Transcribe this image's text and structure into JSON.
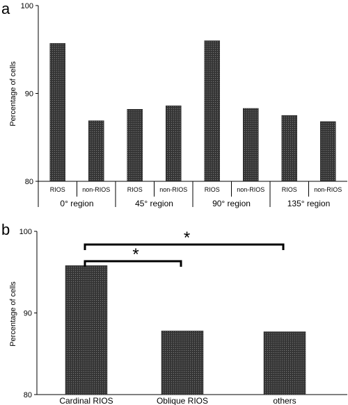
{
  "chart_data": [
    {
      "panel_label": "a",
      "type": "bar",
      "ylabel": "Percentage of cells",
      "ylim": [
        80,
        100
      ],
      "yticks": [
        80,
        90,
        100
      ],
      "categories": [
        "RIOS",
        "non-RIOS",
        "RIOS",
        "non-RIOS",
        "RIOS",
        "non-RIOS",
        "RIOS",
        "non-RIOS"
      ],
      "groups": [
        "0° region",
        "45° region",
        "90° region",
        "135° region"
      ],
      "values": [
        95.7,
        86.9,
        88.2,
        88.6,
        96.0,
        88.3,
        87.5,
        86.8
      ],
      "bar_color": "#3c3c3c",
      "grid": false
    },
    {
      "panel_label": "b",
      "type": "bar",
      "ylabel": "Percentage of cells",
      "ylim": [
        80,
        100
      ],
      "yticks": [
        80,
        90,
        100
      ],
      "categories": [
        "Cardinal RIOS",
        "Oblique RIOS",
        "others"
      ],
      "values": [
        95.8,
        87.8,
        87.7
      ],
      "bar_color": "#3c3c3c",
      "grid": false,
      "significance": [
        {
          "from": "Cardinal RIOS",
          "to": "Oblique RIOS",
          "marker": "*"
        },
        {
          "from": "Cardinal RIOS",
          "to": "others",
          "marker": "*"
        }
      ]
    }
  ]
}
